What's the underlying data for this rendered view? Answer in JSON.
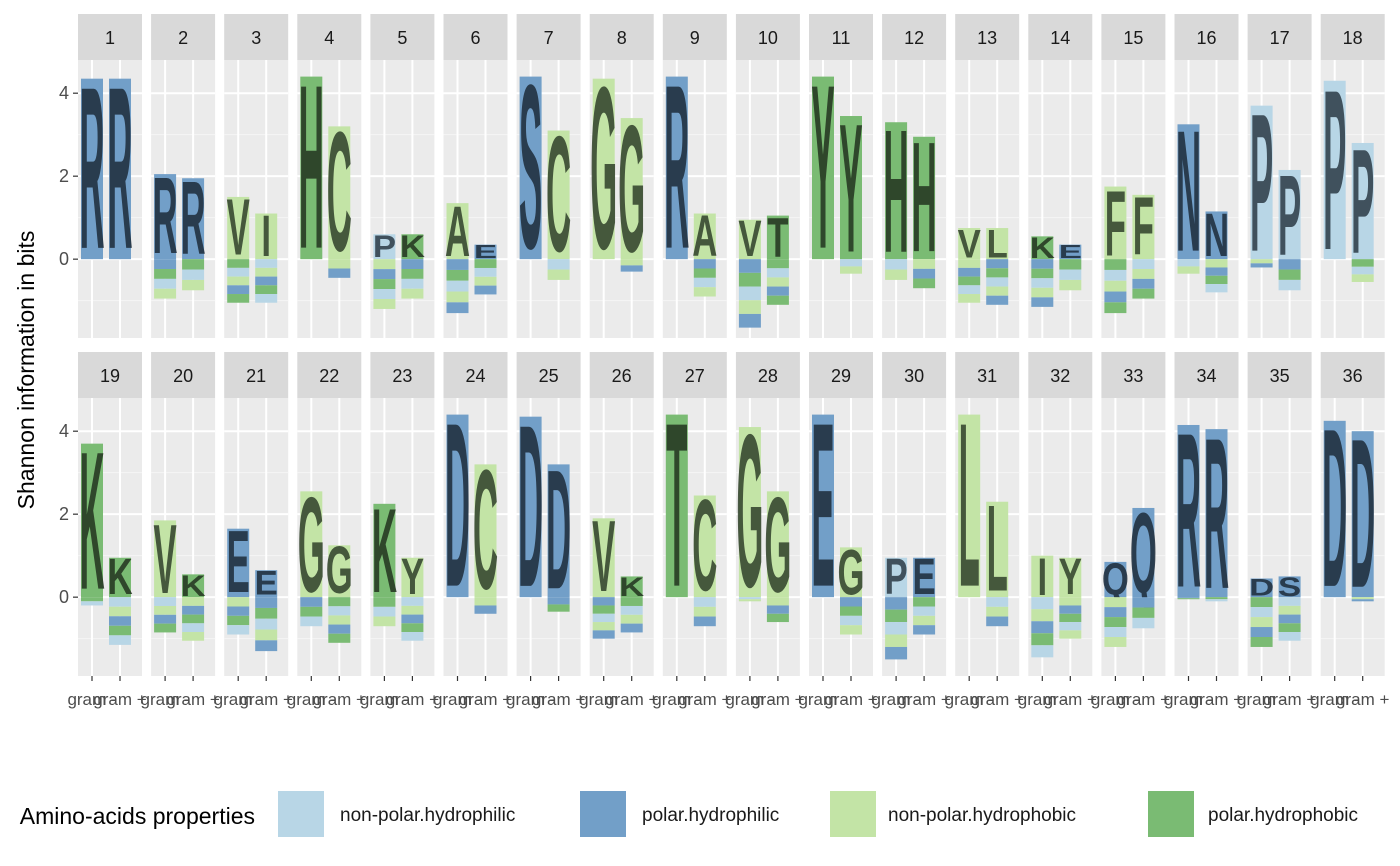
{
  "chart_data": {
    "type": "bar",
    "subtype": "faceted sequence logo (stacked letters per position)",
    "ylabel": "Shannon information in bits",
    "ylim": [
      -1.9,
      4.8
    ],
    "yticks": [
      0,
      2,
      4
    ],
    "x_categories": [
      "gram -",
      "gram +"
    ],
    "xtick_labels": [
      "gram -",
      "gram +"
    ],
    "legend": {
      "title": "Amino-acids properties",
      "position": "bottom",
      "entries": [
        {
          "key": "nph",
          "label": "non-polar.hydrophilic",
          "color": "#b8d6e6"
        },
        {
          "key": "ph",
          "label": "polar.hydrophilic",
          "color": "#729fc8"
        },
        {
          "key": "npo",
          "label": "non-polar.hydrophobic",
          "color": "#c3e4a6"
        },
        {
          "key": "po",
          "label": "polar.hydrophobic",
          "color": "#7abb73"
        }
      ]
    },
    "facets": [
      {
        "label": "1",
        "bars": [
          {
            "pos": 4.35,
            "neg": 0,
            "letter": "R",
            "cls": "ph"
          },
          {
            "pos": 4.35,
            "neg": 0,
            "letter": "R",
            "cls": "ph"
          }
        ]
      },
      {
        "label": "2",
        "bars": [
          {
            "pos": 2.05,
            "neg": -0.95,
            "letter": "R",
            "cls": "ph"
          },
          {
            "pos": 1.95,
            "neg": -0.75,
            "letter": "R",
            "cls": "ph"
          }
        ]
      },
      {
        "label": "3",
        "bars": [
          {
            "pos": 1.5,
            "neg": -1.05,
            "letter": "V",
            "cls": "npo"
          },
          {
            "pos": 1.1,
            "neg": -1.05,
            "letter": "I",
            "cls": "npo"
          }
        ]
      },
      {
        "label": "4",
        "bars": [
          {
            "pos": 4.4,
            "neg": 0,
            "letter": "H",
            "cls": "po"
          },
          {
            "pos": 3.2,
            "neg": -0.45,
            "letter": "C",
            "cls": "npo"
          }
        ]
      },
      {
        "label": "5",
        "bars": [
          {
            "pos": 0.6,
            "neg": -1.2,
            "letter": "P",
            "cls": "nph"
          },
          {
            "pos": 0.6,
            "neg": -0.95,
            "letter": "K",
            "cls": "po"
          }
        ]
      },
      {
        "label": "6",
        "bars": [
          {
            "pos": 1.35,
            "neg": -1.3,
            "letter": "A",
            "cls": "npo"
          },
          {
            "pos": 0.35,
            "neg": -0.85,
            "letter": "E",
            "cls": "ph"
          }
        ]
      },
      {
        "label": "7",
        "bars": [
          {
            "pos": 4.4,
            "neg": 0,
            "letter": "S",
            "cls": "ph"
          },
          {
            "pos": 3.1,
            "neg": -0.5,
            "letter": "C",
            "cls": "npo"
          }
        ]
      },
      {
        "label": "8",
        "bars": [
          {
            "pos": 4.35,
            "neg": 0,
            "letter": "G",
            "cls": "npo"
          },
          {
            "pos": 3.4,
            "neg": -0.3,
            "letter": "G",
            "cls": "npo"
          }
        ]
      },
      {
        "label": "9",
        "bars": [
          {
            "pos": 4.4,
            "neg": 0,
            "letter": "R",
            "cls": "ph"
          },
          {
            "pos": 1.1,
            "neg": -0.9,
            "letter": "A",
            "cls": "npo"
          }
        ]
      },
      {
        "label": "10",
        "bars": [
          {
            "pos": 0.95,
            "neg": -1.65,
            "letter": "V",
            "cls": "npo"
          },
          {
            "pos": 1.05,
            "neg": -1.1,
            "letter": "T",
            "cls": "po"
          }
        ]
      },
      {
        "label": "11",
        "bars": [
          {
            "pos": 4.4,
            "neg": 0,
            "letter": "Y",
            "cls": "po"
          },
          {
            "pos": 3.45,
            "neg": -0.35,
            "letter": "Y",
            "cls": "po"
          }
        ]
      },
      {
        "label": "12",
        "bars": [
          {
            "pos": 3.3,
            "neg": -0.5,
            "letter": "H",
            "cls": "po"
          },
          {
            "pos": 2.95,
            "neg": -0.7,
            "letter": "H",
            "cls": "po"
          }
        ]
      },
      {
        "label": "13",
        "bars": [
          {
            "pos": 0.75,
            "neg": -1.05,
            "letter": "V",
            "cls": "npo"
          },
          {
            "pos": 0.75,
            "neg": -1.1,
            "letter": "L",
            "cls": "npo"
          }
        ]
      },
      {
        "label": "14",
        "bars": [
          {
            "pos": 0.55,
            "neg": -1.15,
            "letter": "K",
            "cls": "po"
          },
          {
            "pos": 0.35,
            "neg": -0.75,
            "letter": "E",
            "cls": "ph"
          }
        ]
      },
      {
        "label": "15",
        "bars": [
          {
            "pos": 1.75,
            "neg": -1.3,
            "letter": "F",
            "cls": "npo"
          },
          {
            "pos": 1.55,
            "neg": -0.95,
            "letter": "F",
            "cls": "npo"
          }
        ]
      },
      {
        "label": "16",
        "bars": [
          {
            "pos": 3.25,
            "neg": -0.35,
            "letter": "N",
            "cls": "ph"
          },
          {
            "pos": 1.15,
            "neg": -0.8,
            "letter": "N",
            "cls": "ph"
          }
        ]
      },
      {
        "label": "17",
        "bars": [
          {
            "pos": 3.7,
            "neg": -0.2,
            "letter": "P",
            "cls": "nph"
          },
          {
            "pos": 2.15,
            "neg": -0.75,
            "letter": "P",
            "cls": "nph"
          }
        ]
      },
      {
        "label": "18",
        "bars": [
          {
            "pos": 4.3,
            "neg": 0,
            "letter": "P",
            "cls": "nph"
          },
          {
            "pos": 2.8,
            "neg": -0.55,
            "letter": "P",
            "cls": "nph"
          }
        ]
      },
      {
        "label": "19",
        "bars": [
          {
            "pos": 3.7,
            "neg": -0.2,
            "letter": "K",
            "cls": "po"
          },
          {
            "pos": 0.95,
            "neg": -1.15,
            "letter": "K",
            "cls": "po"
          }
        ]
      },
      {
        "label": "20",
        "bars": [
          {
            "pos": 1.85,
            "neg": -0.85,
            "letter": "V",
            "cls": "npo"
          },
          {
            "pos": 0.55,
            "neg": -1.05,
            "letter": "K",
            "cls": "po"
          }
        ]
      },
      {
        "label": "21",
        "bars": [
          {
            "pos": 1.65,
            "neg": -0.9,
            "letter": "E",
            "cls": "ph"
          },
          {
            "pos": 0.65,
            "neg": -1.3,
            "letter": "E",
            "cls": "ph"
          }
        ]
      },
      {
        "label": "22",
        "bars": [
          {
            "pos": 2.55,
            "neg": -0.7,
            "letter": "G",
            "cls": "npo"
          },
          {
            "pos": 1.25,
            "neg": -1.1,
            "letter": "G",
            "cls": "npo"
          }
        ]
      },
      {
        "label": "23",
        "bars": [
          {
            "pos": 2.25,
            "neg": -0.7,
            "letter": "K",
            "cls": "po"
          },
          {
            "pos": 0.95,
            "neg": -1.05,
            "letter": "Y",
            "cls": "npo"
          }
        ]
      },
      {
        "label": "24",
        "bars": [
          {
            "pos": 4.4,
            "neg": 0,
            "letter": "D",
            "cls": "ph"
          },
          {
            "pos": 3.2,
            "neg": -0.4,
            "letter": "C",
            "cls": "npo"
          }
        ]
      },
      {
        "label": "25",
        "bars": [
          {
            "pos": 4.35,
            "neg": 0,
            "letter": "D",
            "cls": "ph"
          },
          {
            "pos": 3.2,
            "neg": -0.35,
            "letter": "D",
            "cls": "ph"
          }
        ]
      },
      {
        "label": "26",
        "bars": [
          {
            "pos": 1.9,
            "neg": -1.0,
            "letter": "V",
            "cls": "npo"
          },
          {
            "pos": 0.5,
            "neg": -0.85,
            "letter": "K",
            "cls": "po"
          }
        ]
      },
      {
        "label": "27",
        "bars": [
          {
            "pos": 4.4,
            "neg": 0,
            "letter": "T",
            "cls": "po"
          },
          {
            "pos": 2.45,
            "neg": -0.7,
            "letter": "C",
            "cls": "npo"
          }
        ]
      },
      {
        "label": "28",
        "bars": [
          {
            "pos": 4.1,
            "neg": -0.1,
            "letter": "G",
            "cls": "npo"
          },
          {
            "pos": 2.55,
            "neg": -0.6,
            "letter": "G",
            "cls": "npo"
          }
        ]
      },
      {
        "label": "29",
        "bars": [
          {
            "pos": 4.4,
            "neg": 0,
            "letter": "E",
            "cls": "ph"
          },
          {
            "pos": 1.2,
            "neg": -0.9,
            "letter": "G",
            "cls": "npo"
          }
        ]
      },
      {
        "label": "30",
        "bars": [
          {
            "pos": 0.95,
            "neg": -1.5,
            "letter": "P",
            "cls": "nph"
          },
          {
            "pos": 0.95,
            "neg": -0.9,
            "letter": "E",
            "cls": "ph"
          }
        ]
      },
      {
        "label": "31",
        "bars": [
          {
            "pos": 4.4,
            "neg": 0,
            "letter": "L",
            "cls": "npo"
          },
          {
            "pos": 2.3,
            "neg": -0.7,
            "letter": "L",
            "cls": "npo"
          }
        ]
      },
      {
        "label": "32",
        "bars": [
          {
            "pos": 1.0,
            "neg": -1.45,
            "letter": "I",
            "cls": "npo"
          },
          {
            "pos": 0.95,
            "neg": -1.0,
            "letter": "Y",
            "cls": "npo"
          }
        ]
      },
      {
        "label": "33",
        "bars": [
          {
            "pos": 0.85,
            "neg": -1.2,
            "letter": "Q",
            "cls": "ph"
          },
          {
            "pos": 2.15,
            "neg": -0.75,
            "letter": "Q",
            "cls": "ph"
          }
        ]
      },
      {
        "label": "34",
        "bars": [
          {
            "pos": 4.15,
            "neg": -0.05,
            "letter": "R",
            "cls": "ph"
          },
          {
            "pos": 4.05,
            "neg": -0.1,
            "letter": "R",
            "cls": "ph"
          }
        ]
      },
      {
        "label": "35",
        "bars": [
          {
            "pos": 0.45,
            "neg": -1.2,
            "letter": "D",
            "cls": "ph"
          },
          {
            "pos": 0.5,
            "neg": -1.05,
            "letter": "S",
            "cls": "ph"
          }
        ]
      },
      {
        "label": "36",
        "bars": [
          {
            "pos": 4.25,
            "neg": 0,
            "letter": "D",
            "cls": "ph"
          },
          {
            "pos": 4.0,
            "neg": -0.1,
            "letter": "D",
            "cls": "ph"
          }
        ]
      }
    ]
  }
}
